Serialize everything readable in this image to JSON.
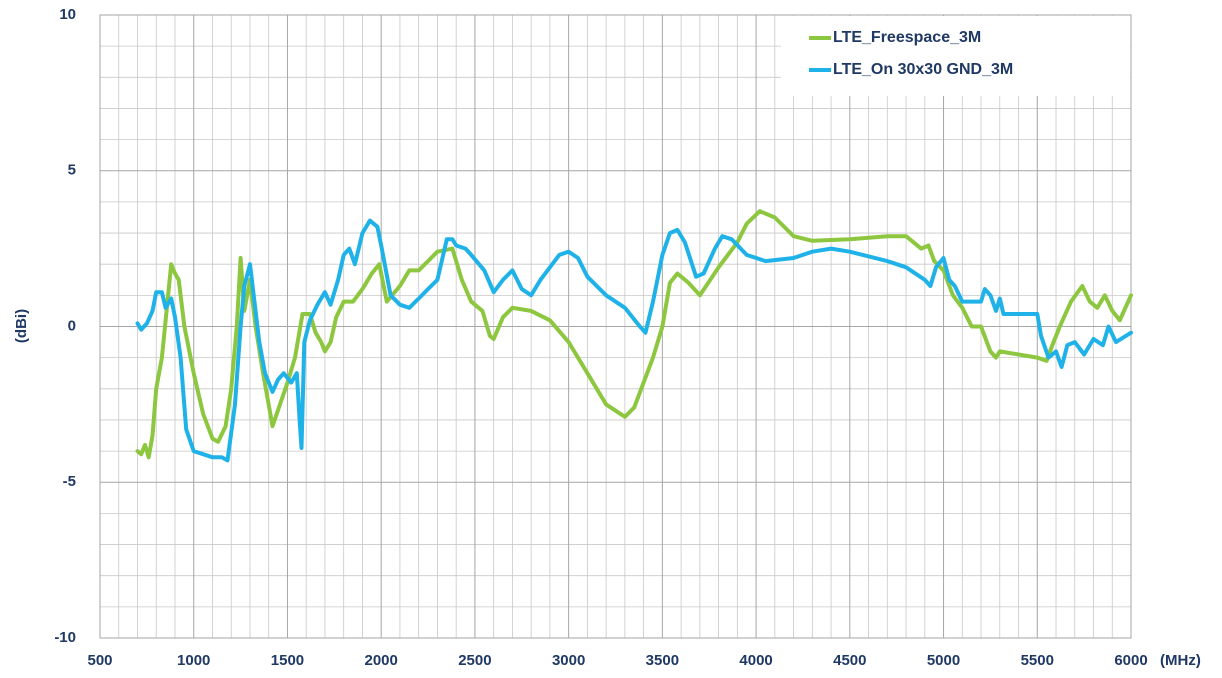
{
  "chart_data": {
    "type": "line",
    "xlabel": "(MHz)",
    "ylabel": "(dBi)",
    "xlim": [
      500,
      6000
    ],
    "ylim": [
      -10,
      10
    ],
    "xticks": [
      500,
      1000,
      1500,
      2000,
      2500,
      3000,
      3500,
      4000,
      4500,
      5000,
      5500,
      6000
    ],
    "yticks": [
      -10,
      -5,
      0,
      5,
      10
    ],
    "grid": true,
    "legend": "upper right",
    "series": [
      {
        "name": "LTE_Freespace_3M",
        "color": "#8dc63f",
        "x": [
          700,
          720,
          740,
          760,
          780,
          800,
          830,
          860,
          880,
          900,
          920,
          950,
          1000,
          1050,
          1100,
          1130,
          1170,
          1200,
          1230,
          1250,
          1270,
          1300,
          1330,
          1370,
          1420,
          1460,
          1500,
          1540,
          1580,
          1620,
          1650,
          1680,
          1700,
          1730,
          1760,
          1800,
          1850,
          1900,
          1950,
          1990,
          2030,
          2100,
          2150,
          2200,
          2300,
          2380,
          2430,
          2480,
          2540,
          2580,
          2600,
          2650,
          2700,
          2800,
          2900,
          3000,
          3100,
          3200,
          3300,
          3350,
          3400,
          3450,
          3500,
          3540,
          3580,
          3640,
          3700,
          3800,
          3900,
          3950,
          4020,
          4100,
          4200,
          4300,
          4500,
          4700,
          4800,
          4880,
          4920,
          4950,
          5000,
          5050,
          5100,
          5150,
          5200,
          5250,
          5280,
          5300,
          5400,
          5500,
          5550,
          5580,
          5620,
          5680,
          5740,
          5780,
          5820,
          5860,
          5900,
          5940,
          6000
        ],
        "values": [
          -4.0,
          -4.1,
          -3.8,
          -4.2,
          -3.5,
          -2.0,
          -1.0,
          0.8,
          2.0,
          1.7,
          1.5,
          0.0,
          -1.5,
          -2.8,
          -3.6,
          -3.7,
          -3.2,
          -2.0,
          0.0,
          2.2,
          0.5,
          1.5,
          0.0,
          -1.5,
          -3.2,
          -2.5,
          -1.8,
          -1.0,
          0.4,
          0.4,
          -0.2,
          -0.5,
          -0.8,
          -0.5,
          0.3,
          0.8,
          0.8,
          1.2,
          1.7,
          2.0,
          0.8,
          1.3,
          1.8,
          1.8,
          2.4,
          2.5,
          1.5,
          0.8,
          0.5,
          -0.3,
          -0.4,
          0.3,
          0.6,
          0.5,
          0.2,
          -0.5,
          -1.5,
          -2.5,
          -2.9,
          -2.6,
          -1.8,
          -1.0,
          0.0,
          1.4,
          1.7,
          1.4,
          1.0,
          1.9,
          2.7,
          3.3,
          3.7,
          3.5,
          2.9,
          2.75,
          2.8,
          2.9,
          2.9,
          2.5,
          2.6,
          2.1,
          1.8,
          1.0,
          0.6,
          0.0,
          0.0,
          -0.8,
          -1.0,
          -0.8,
          -0.9,
          -1.0,
          -1.1,
          -0.6,
          0.0,
          0.8,
          1.3,
          0.8,
          0.6,
          1.0,
          0.5,
          0.2,
          1.0
        ]
      },
      {
        "name": "LTE_On 30x30 GND_3M",
        "color": "#1fb2e8",
        "x": [
          700,
          720,
          750,
          780,
          800,
          830,
          850,
          880,
          900,
          930,
          960,
          1000,
          1050,
          1100,
          1150,
          1180,
          1220,
          1250,
          1270,
          1300,
          1320,
          1350,
          1380,
          1420,
          1450,
          1480,
          1520,
          1550,
          1565,
          1575,
          1590,
          1620,
          1660,
          1700,
          1730,
          1770,
          1800,
          1830,
          1860,
          1900,
          1940,
          1980,
          2000,
          2050,
          2100,
          2150,
          2200,
          2250,
          2300,
          2350,
          2380,
          2400,
          2450,
          2480,
          2550,
          2600,
          2650,
          2700,
          2750,
          2800,
          2850,
          2900,
          2950,
          3000,
          3050,
          3100,
          3200,
          3300,
          3380,
          3410,
          3450,
          3500,
          3540,
          3580,
          3620,
          3680,
          3720,
          3780,
          3820,
          3870,
          3950,
          4050,
          4200,
          4300,
          4400,
          4500,
          4700,
          4800,
          4900,
          4930,
          4960,
          5000,
          5030,
          5060,
          5100,
          5150,
          5200,
          5220,
          5250,
          5280,
          5300,
          5320,
          5400,
          5500,
          5520,
          5560,
          5600,
          5630,
          5660,
          5700,
          5750,
          5800,
          5850,
          5880,
          5920,
          6000
        ],
        "values": [
          0.1,
          -0.1,
          0.1,
          0.5,
          1.1,
          1.1,
          0.6,
          0.9,
          0.3,
          -1.0,
          -3.3,
          -4.0,
          -4.1,
          -4.2,
          -4.2,
          -4.3,
          -2.5,
          0.0,
          1.3,
          2.0,
          1.0,
          -0.5,
          -1.5,
          -2.1,
          -1.7,
          -1.5,
          -1.8,
          -1.5,
          -3.0,
          -3.9,
          -0.5,
          0.2,
          0.7,
          1.1,
          0.7,
          1.5,
          2.3,
          2.5,
          2.0,
          3.0,
          3.4,
          3.2,
          2.6,
          1.0,
          0.7,
          0.6,
          0.9,
          1.2,
          1.5,
          2.8,
          2.8,
          2.6,
          2.5,
          2.3,
          1.8,
          1.1,
          1.5,
          1.8,
          1.2,
          1.0,
          1.5,
          1.9,
          2.3,
          2.4,
          2.2,
          1.6,
          1.0,
          0.6,
          0.0,
          -0.2,
          0.8,
          2.3,
          3.0,
          3.1,
          2.7,
          1.6,
          1.7,
          2.5,
          2.9,
          2.8,
          2.3,
          2.1,
          2.2,
          2.4,
          2.5,
          2.4,
          2.1,
          1.9,
          1.5,
          1.3,
          1.9,
          2.2,
          1.5,
          1.3,
          0.8,
          0.8,
          0.8,
          1.2,
          1.0,
          0.5,
          0.9,
          0.4,
          0.4,
          0.4,
          -0.3,
          -1.0,
          -0.8,
          -1.3,
          -0.6,
          -0.5,
          -0.9,
          -0.4,
          -0.6,
          0.0,
          -0.5,
          -0.2
        ]
      }
    ]
  }
}
